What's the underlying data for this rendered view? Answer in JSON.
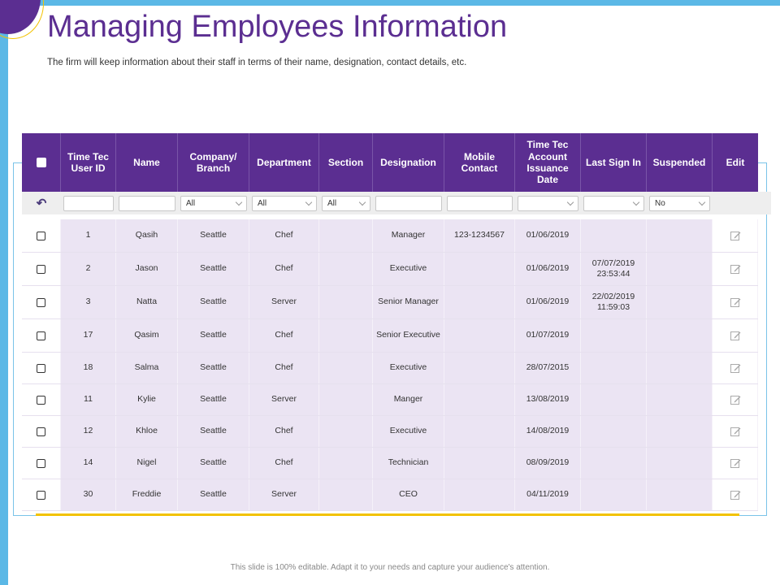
{
  "page": {
    "title": "Managing Employees Information",
    "subtitle": "The firm will keep information about their staff in terms of their name, designation, contact details, etc.",
    "footer": "This slide is 100% editable. Adapt it to your needs and capture your audience's attention."
  },
  "colors": {
    "header_bg": "#5b2e91",
    "accent_blue": "#5bb8e6",
    "accent_gold": "#f2c200",
    "row_bg": "#ebe4f3"
  },
  "table": {
    "headers": [
      "",
      "Time Tec User ID",
      "Name",
      "Company/ Branch",
      "Department",
      "Section",
      "Designation",
      "Mobile Contact",
      "Time Tec Account Issuance Date",
      "Last Sign In",
      "Suspended",
      "Edit"
    ],
    "filters": {
      "undo_icon": "undo-icon",
      "company": "All",
      "department": "All",
      "section": "All",
      "suspended": "No"
    },
    "rows": [
      {
        "id": "1",
        "name": "Qasih",
        "company": "Seattle",
        "department": "Chef",
        "section": "",
        "designation": "Manager",
        "mobile": "123-1234567",
        "issuance": "01/06/2019",
        "last_sign_in": "",
        "suspended": ""
      },
      {
        "id": "2",
        "name": "Jason",
        "company": "Seattle",
        "department": "Chef",
        "section": "",
        "designation": "Executive",
        "mobile": "",
        "issuance": "01/06/2019",
        "last_sign_in": "07/07/2019 23:53:44",
        "suspended": ""
      },
      {
        "id": "3",
        "name": "Natta",
        "company": "Seattle",
        "department": "Server",
        "section": "",
        "designation": "Senior Manager",
        "mobile": "",
        "issuance": "01/06/2019",
        "last_sign_in": "22/02/2019 11:59:03",
        "suspended": ""
      },
      {
        "id": "17",
        "name": "Qasim",
        "company": "Seattle",
        "department": "Chef",
        "section": "",
        "designation": "Senior Executive",
        "mobile": "",
        "issuance": "01/07/2019",
        "last_sign_in": "",
        "suspended": ""
      },
      {
        "id": "18",
        "name": "Salma",
        "company": "Seattle",
        "department": "Chef",
        "section": "",
        "designation": "Executive",
        "mobile": "",
        "issuance": "28/07/2015",
        "last_sign_in": "",
        "suspended": ""
      },
      {
        "id": "11",
        "name": "Kylie",
        "company": "Seattle",
        "department": "Server",
        "section": "",
        "designation": "Manger",
        "mobile": "",
        "issuance": "13/08/2019",
        "last_sign_in": "",
        "suspended": ""
      },
      {
        "id": "12",
        "name": "Khloe",
        "company": "Seattle",
        "department": "Chef",
        "section": "",
        "designation": "Executive",
        "mobile": "",
        "issuance": "14/08/2019",
        "last_sign_in": "",
        "suspended": ""
      },
      {
        "id": "14",
        "name": "Nigel",
        "company": "Seattle",
        "department": "Chef",
        "section": "",
        "designation": "Technician",
        "mobile": "",
        "issuance": "08/09/2019",
        "last_sign_in": "",
        "suspended": ""
      },
      {
        "id": "30",
        "name": "Freddie",
        "company": "Seattle",
        "department": "Server",
        "section": "",
        "designation": "CEO",
        "mobile": "",
        "issuance": "04/11/2019",
        "last_sign_in": "",
        "suspended": ""
      }
    ]
  }
}
